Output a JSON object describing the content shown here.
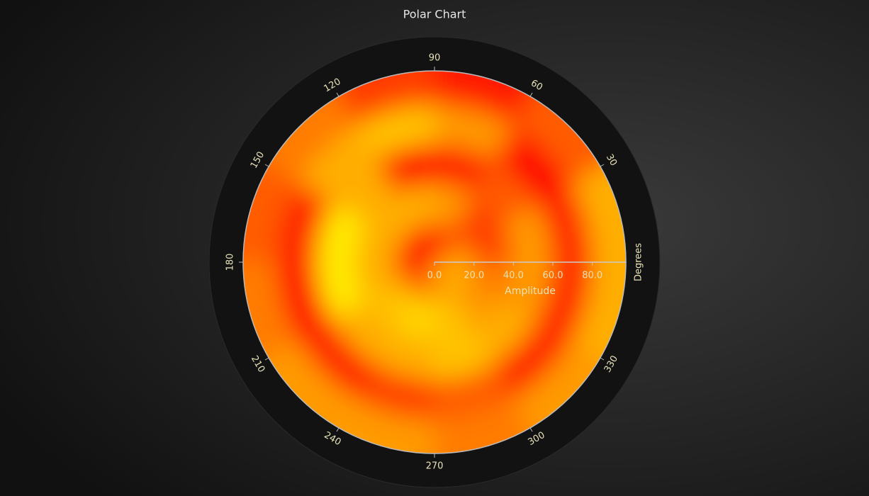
{
  "chart_data": {
    "type": "polar-heatmap",
    "title": "Polar Chart",
    "theta_axis_label": "Degrees",
    "r_axis_label": "Amplitude",
    "theta_ticks": [
      30,
      60,
      90,
      120,
      150,
      180,
      210,
      240,
      270,
      300,
      330
    ],
    "rlim": [
      0,
      97
    ],
    "rticks": [
      {
        "value": 0,
        "label": "0.0"
      },
      {
        "value": 20,
        "label": "20.0"
      },
      {
        "value": 40,
        "label": "40.0"
      },
      {
        "value": 60,
        "label": "60.0"
      },
      {
        "value": 80,
        "label": "80.0"
      }
    ],
    "theta_bins": [
      0,
      30,
      60,
      90,
      120,
      150,
      180,
      210,
      240,
      270,
      300,
      330,
      360
    ],
    "r_bins": [
      0,
      20,
      40,
      60,
      80,
      97
    ],
    "zlim": [
      0,
      1
    ],
    "colormap": [
      "#ff0000",
      "#ff9a00",
      "#ffff00"
    ],
    "values": [
      [
        0.5,
        0.3,
        0.2,
        0.1,
        0.0,
        0.0,
        0.1,
        0.3,
        0.4,
        0.5,
        0.6,
        0.6
      ],
      [
        0.2,
        0.2,
        0.5,
        0.6,
        0.6,
        0.6,
        0.6,
        0.7,
        0.8,
        0.7,
        0.5,
        0.4
      ],
      [
        0.5,
        0.3,
        0.1,
        0.0,
        0.6,
        0.9,
        0.9,
        0.6,
        0.6,
        0.7,
        0.6,
        0.5
      ],
      [
        0.1,
        0.0,
        0.5,
        0.7,
        0.6,
        0.1,
        0.0,
        0.1,
        0.2,
        0.3,
        0.1,
        0.1
      ],
      [
        0.6,
        0.3,
        0.1,
        0.2,
        0.4,
        0.3,
        0.4,
        0.5,
        0.5,
        0.4,
        0.5,
        0.6
      ]
    ]
  }
}
